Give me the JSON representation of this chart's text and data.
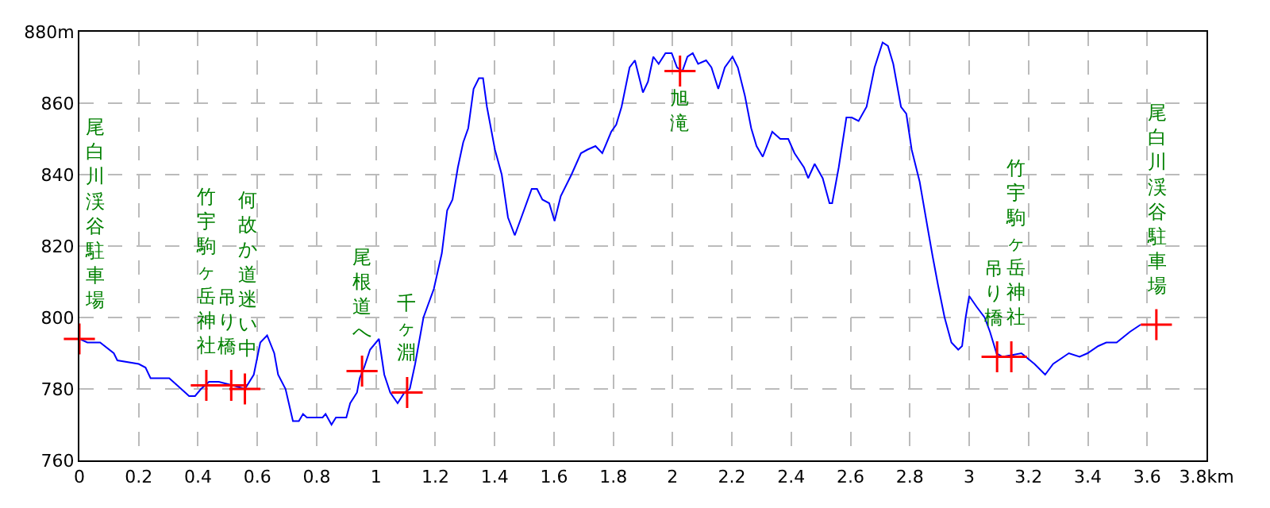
{
  "chart_data": {
    "type": "line",
    "xlim": [
      0,
      3.8
    ],
    "ylim": [
      760,
      880
    ],
    "xticks": [
      0,
      0.2,
      0.4,
      0.6,
      0.8,
      1,
      1.2,
      1.4,
      1.6,
      1.8,
      2,
      2.2,
      2.4,
      2.6,
      2.8,
      3,
      3.2,
      3.4,
      3.6,
      {
        "value": 3.8,
        "label": "3.8km"
      }
    ],
    "yticks": [
      760,
      780,
      800,
      820,
      840,
      860,
      {
        "value": 880,
        "label": "880m"
      }
    ],
    "grid": true,
    "line_style": "solid",
    "series": [
      {
        "color": "#0000ff",
        "marker": "none",
        "x": [
          0,
          0.027,
          0.07,
          0.116,
          0.128,
          0.2,
          0.223,
          0.24,
          0.303,
          0.33,
          0.37,
          0.39,
          0.41,
          0.437,
          0.47,
          0.517,
          0.558,
          0.588,
          0.61,
          0.633,
          0.657,
          0.67,
          0.695,
          0.72,
          0.74,
          0.754,
          0.767,
          0.82,
          0.83,
          0.85,
          0.865,
          0.9,
          0.913,
          0.936,
          0.945,
          0.96,
          0.98,
          1.01,
          1.028,
          1.048,
          1.073,
          1.096,
          1.114,
          1.132,
          1.16,
          1.195,
          1.222,
          1.24,
          1.258,
          1.276,
          1.294,
          1.311,
          1.329,
          1.347,
          1.361,
          1.374,
          1.401,
          1.424,
          1.445,
          1.468,
          1.49,
          1.525,
          1.543,
          1.561,
          1.584,
          1.602,
          1.623,
          1.659,
          1.691,
          1.713,
          1.74,
          1.763,
          1.793,
          1.81,
          1.828,
          1.855,
          1.873,
          1.885,
          1.9,
          1.917,
          1.935,
          1.953,
          1.976,
          1.997,
          2.015,
          2.033,
          2.05,
          2.068,
          2.086,
          2.113,
          2.131,
          2.154,
          2.176,
          2.202,
          2.22,
          2.244,
          2.265,
          2.283,
          2.304,
          2.336,
          2.363,
          2.39,
          2.411,
          2.443,
          2.457,
          2.479,
          2.506,
          2.529,
          2.538,
          2.56,
          2.586,
          2.604,
          2.627,
          2.654,
          2.681,
          2.708,
          2.726,
          2.744,
          2.77,
          2.788,
          2.806,
          2.833,
          2.86,
          2.877,
          2.895,
          2.917,
          2.94,
          2.963,
          2.976,
          2.988,
          3.0,
          3.025,
          3.052,
          3.07,
          3.092,
          3.113,
          3.176,
          3.22,
          3.256,
          3.283,
          3.336,
          3.372,
          3.399,
          3.435,
          3.462,
          3.497,
          3.542,
          3.578
        ],
        "values": [
          794,
          793,
          793,
          790,
          788,
          787,
          786,
          783,
          783,
          781,
          778,
          778,
          780,
          782,
          782,
          781,
          780,
          784,
          793,
          795,
          790,
          784,
          780,
          771,
          771,
          773,
          772,
          772,
          773,
          770,
          772,
          772,
          776,
          779,
          783,
          786,
          791,
          794,
          784,
          779,
          776,
          779,
          780,
          787,
          800,
          808,
          818,
          830,
          833,
          842,
          849,
          853,
          864,
          867,
          867,
          859,
          847,
          840,
          828,
          823,
          828,
          836,
          836,
          833,
          832,
          827,
          834,
          840,
          846,
          847,
          848,
          846,
          852,
          854,
          859,
          870,
          872,
          868,
          863,
          866,
          873,
          871,
          874,
          874,
          870,
          869,
          873,
          874,
          871,
          872,
          870,
          864,
          870,
          873,
          870,
          862,
          853,
          848,
          845,
          852,
          850,
          850,
          846,
          842,
          839,
          843,
          839,
          832,
          832,
          842,
          856,
          856,
          855,
          859,
          870,
          877,
          876,
          871,
          859,
          857,
          847,
          838,
          825,
          817,
          809,
          800,
          793,
          791,
          792,
          800,
          806,
          803,
          800,
          796,
          790,
          789,
          790,
          787,
          784,
          787,
          790,
          789,
          790,
          792,
          793,
          793,
          796,
          798
        ]
      },
      {
        "type": "scatter",
        "color": "#ff0000",
        "marker": "cross",
        "x": [
          0,
          0.428,
          0.512,
          0.558,
          0.953,
          1.105,
          2.025,
          3.094,
          3.142,
          3.631
        ],
        "values": [
          794,
          781,
          781,
          780,
          785,
          779,
          869,
          789,
          789,
          798
        ]
      }
    ],
    "annotations": [
      {
        "text": "尾白川渓谷駐車場",
        "x": 0,
        "y": 794
      },
      {
        "text": "竹宇駒ヶ岳神社",
        "x": 0.428,
        "y": 781
      },
      {
        "text": "吊り橋",
        "x": 0.512,
        "y": 781
      },
      {
        "text": "何故か道迷い中",
        "x": 0.558,
        "y": 780
      },
      {
        "text": "尾根道へ",
        "x": 0.953,
        "y": 785
      },
      {
        "text": "千ヶ淵",
        "x": 1.105,
        "y": 779
      },
      {
        "text": "旭滝",
        "x": 2.025,
        "y": 869
      },
      {
        "text": "吊り橋",
        "x": 3.094,
        "y": 789
      },
      {
        "text": "竹宇駒ヶ岳神社",
        "x": 3.142,
        "y": 789
      },
      {
        "text": "尾白川渓谷駐車場",
        "x": 3.631,
        "y": 798
      }
    ]
  }
}
